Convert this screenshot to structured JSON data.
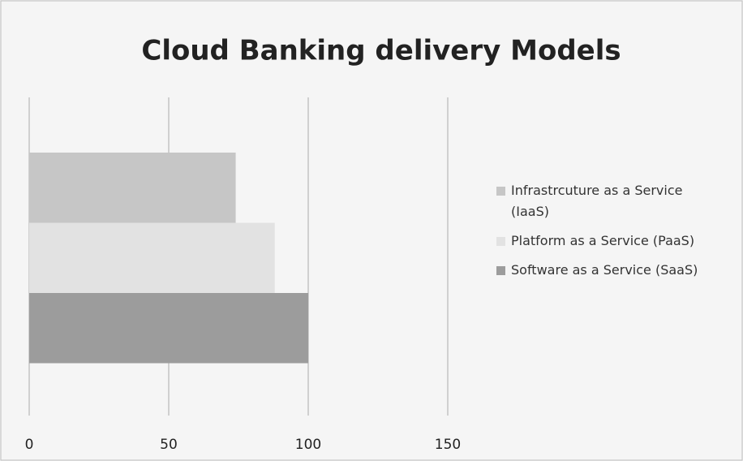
{
  "chart_data": {
    "type": "bar",
    "orientation": "horizontal",
    "title": "Cloud Banking delivery Models",
    "categories": [
      null
    ],
    "series": [
      {
        "name": "Infrastrcuture as a Service (IaaS)",
        "color": "#c6c6c6",
        "values": [
          74
        ]
      },
      {
        "name": "Platform as a Service (PaaS)",
        "color": "#e2e2e2",
        "values": [
          88
        ]
      },
      {
        "name": "Software as a Service (SaaS)",
        "color": "#9c9c9c",
        "values": [
          100
        ]
      }
    ],
    "xlim": [
      0,
      150
    ],
    "xticks": [
      0,
      50,
      100,
      150
    ],
    "grid": true,
    "legend": "right"
  }
}
